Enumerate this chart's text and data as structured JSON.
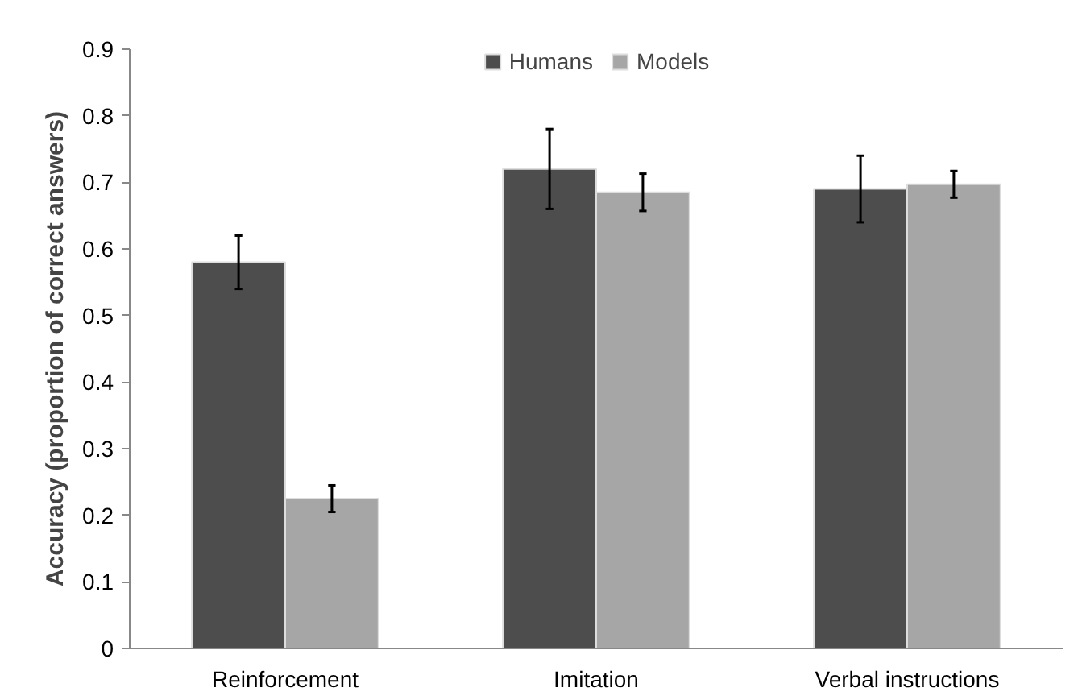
{
  "chart_data": {
    "type": "bar",
    "ylabel": "Accuracy (proportion of correct answers)",
    "categories": [
      "Reinforcement",
      "Imitation",
      "Verbal instructions"
    ],
    "series": [
      {
        "name": "Humans",
        "color": "#4d4d4d",
        "values": [
          0.58,
          0.72,
          0.69
        ],
        "errors": [
          0.04,
          0.06,
          0.05
        ]
      },
      {
        "name": "Models",
        "color": "#a6a6a6",
        "values": [
          0.225,
          0.685,
          0.697
        ],
        "errors": [
          0.02,
          0.028,
          0.02
        ]
      }
    ],
    "ylim": [
      0,
      0.9
    ],
    "yticks": [
      0,
      0.1,
      0.2,
      0.3,
      0.4,
      0.5,
      0.6,
      0.7,
      0.8,
      0.9
    ],
    "grid": false,
    "legend": "top"
  }
}
